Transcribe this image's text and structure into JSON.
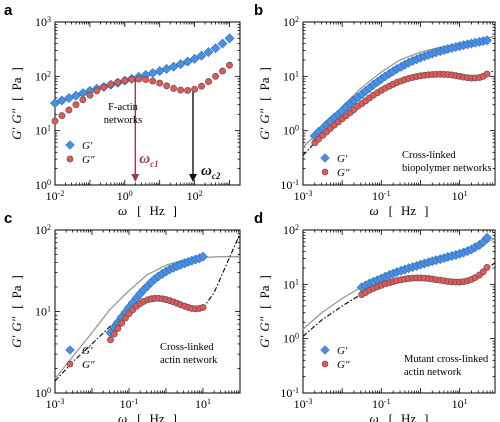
{
  "colors": {
    "gp": "#4a8fe0",
    "gpp": "#e85656",
    "marker_edge": "#555555",
    "fit": "#999999",
    "arrow_red": "#a3384a",
    "arrow_black": "#111111"
  },
  "chart_data": [
    {
      "panel": "a",
      "type": "scatter",
      "xscale": "log",
      "yscale": "log",
      "xlim": [
        0.01,
        2000
      ],
      "ylim": [
        1,
        1000
      ],
      "xticks": [
        {
          "v": 0.01,
          "b": "10",
          "e": "-2"
        },
        {
          "v": 1,
          "b": "10",
          "e": "0"
        },
        {
          "v": 100,
          "b": "10",
          "e": "2"
        }
      ],
      "yticks": [
        {
          "v": 1,
          "b": "10",
          "e": "0"
        },
        {
          "v": 10,
          "b": "10",
          "e": "1"
        },
        {
          "v": 100,
          "b": "10",
          "e": "2"
        },
        {
          "v": 1000,
          "b": "10",
          "e": "3"
        }
      ],
      "xlabel": {
        "sym": "ω",
        "unit": "Hz"
      },
      "ylabel": {
        "g1": "G′",
        "g2": "G″",
        "unit": "Pa"
      },
      "legend": [
        "G′",
        "G″"
      ],
      "annotation": [
        "F-actin",
        "networks"
      ],
      "markers": [
        {
          "label": "ω",
          "sub": "c1",
          "x": 2,
          "color": "arrow_red"
        },
        {
          "label": "ω",
          "sub": "c2",
          "x": 90,
          "color": "arrow_black"
        }
      ],
      "series": [
        {
          "name": "G′",
          "x": [
            0.01,
            0.0158,
            0.0251,
            0.0398,
            0.063,
            0.1,
            0.158,
            0.251,
            0.398,
            0.63,
            1,
            1.58,
            2.51,
            3.98,
            6.3,
            10,
            15.8,
            25.1,
            39.8,
            63,
            100,
            158,
            251,
            398,
            630,
            1000
          ],
          "y": [
            32,
            36,
            40,
            44,
            49,
            54,
            59,
            64,
            70,
            76,
            83,
            90,
            98,
            106,
            115,
            125,
            137,
            151,
            168,
            187,
            210,
            240,
            280,
            330,
            400,
            500
          ]
        },
        {
          "name": "G″",
          "x": [
            0.01,
            0.0158,
            0.0251,
            0.0398,
            0.063,
            0.1,
            0.158,
            0.251,
            0.398,
            0.63,
            1,
            1.58,
            2.51,
            3.98,
            6.3,
            10,
            15.8,
            25.1,
            39.8,
            63,
            100,
            158,
            251,
            398,
            630,
            1000
          ],
          "y": [
            15,
            19,
            24,
            30,
            37,
            45,
            54,
            63,
            71,
            78,
            84,
            88,
            89,
            87,
            82,
            75,
            67,
            60,
            56,
            55,
            58,
            66,
            80,
            100,
            125,
            160
          ]
        }
      ]
    },
    {
      "panel": "b",
      "type": "scatter",
      "xscale": "log",
      "yscale": "log",
      "xlim": [
        0.001,
        80
      ],
      "ylim": [
        0.1,
        100
      ],
      "xticks": [
        {
          "v": 0.001,
          "b": "10",
          "e": "-3"
        },
        {
          "v": 0.1,
          "b": "10",
          "e": "-1"
        },
        {
          "v": 10,
          "b": "10",
          "e": "1"
        }
      ],
      "yticks": [
        {
          "v": 0.1,
          "b": "10",
          "e": "-1"
        },
        {
          "v": 1,
          "b": "10",
          "e": "0"
        },
        {
          "v": 10,
          "b": "10",
          "e": "1"
        },
        {
          "v": 100,
          "b": "10",
          "e": "2"
        }
      ],
      "xlabel": {
        "sym": "ω",
        "unit": "Hz"
      },
      "ylabel": {
        "g1": "G′",
        "g2": "G″",
        "unit": "Pa"
      },
      "legend": [
        "G′",
        "G″"
      ],
      "annotation": [
        "Cross-linked",
        "biopolymer networks"
      ],
      "fit_gp": {
        "x": [
          0.001,
          0.002,
          0.005,
          0.01,
          0.03,
          0.1,
          0.3,
          1,
          3,
          10,
          30,
          80
        ],
        "y": [
          0.5,
          0.8,
          1.6,
          2.8,
          6,
          12,
          20,
          28,
          34,
          40,
          46,
          55
        ]
      },
      "fit_gpp": {
        "x": [
          0.001,
          0.002,
          0.005,
          0.01,
          0.03,
          0.1,
          0.3,
          1,
          3,
          6,
          10,
          15,
          20,
          30,
          50,
          80
        ],
        "y": [
          0.35,
          0.6,
          1.1,
          1.8,
          3.4,
          5.5,
          7.8,
          9.8,
          11,
          10.8,
          9.8,
          9,
          9,
          9.8,
          11,
          13
        ]
      },
      "series": [
        {
          "name": "G′",
          "x": [
            0.002,
            0.0025,
            0.0032,
            0.004,
            0.005,
            0.0063,
            0.008,
            0.01,
            0.0126,
            0.016,
            0.02,
            0.025,
            0.032,
            0.04,
            0.05,
            0.063,
            0.08,
            0.1,
            0.126,
            0.16,
            0.2,
            0.25,
            0.32,
            0.4,
            0.5,
            0.63,
            0.8,
            1,
            1.26,
            1.6,
            2,
            2.5,
            3.2,
            4,
            5,
            6.3,
            8,
            10,
            12.6,
            16,
            20,
            25,
            32,
            40,
            50
          ],
          "y": [
            0.8,
            0.95,
            1.1,
            1.3,
            1.5,
            1.75,
            2,
            2.3,
            2.7,
            3.1,
            3.6,
            4.1,
            4.7,
            5.4,
            6.1,
            7,
            7.9,
            8.9,
            10,
            11.2,
            12.4,
            13.7,
            15,
            16.4,
            17.8,
            19.2,
            20.6,
            22,
            23.4,
            24.8,
            26.2,
            27.6,
            29,
            30.4,
            31.8,
            33.2,
            34.6,
            36,
            37.4,
            38.8,
            40.2,
            41.6,
            43,
            44.5,
            46
          ]
        },
        {
          "name": "G″",
          "x": [
            0.002,
            0.0025,
            0.0032,
            0.004,
            0.005,
            0.0063,
            0.008,
            0.01,
            0.0126,
            0.016,
            0.02,
            0.025,
            0.032,
            0.04,
            0.05,
            0.063,
            0.08,
            0.1,
            0.126,
            0.16,
            0.2,
            0.25,
            0.32,
            0.4,
            0.5,
            0.63,
            0.8,
            1,
            1.26,
            1.6,
            2,
            2.5,
            3.2,
            4,
            5,
            6.3,
            8,
            10,
            12.6,
            16,
            20,
            25,
            32,
            40,
            50
          ],
          "y": [
            0.6,
            0.7,
            0.82,
            0.95,
            1.1,
            1.27,
            1.45,
            1.65,
            1.88,
            2.15,
            2.45,
            2.8,
            3.15,
            3.55,
            4,
            4.5,
            5,
            5.5,
            6.05,
            6.6,
            7.15,
            7.7,
            8.2,
            8.7,
            9.15,
            9.55,
            9.9,
            10.2,
            10.45,
            10.65,
            10.8,
            10.9,
            10.95,
            10.9,
            10.8,
            10.6,
            10.3,
            10,
            9.7,
            9.45,
            9.3,
            9.3,
            9.5,
            10,
            11
          ]
        }
      ]
    },
    {
      "panel": "c",
      "type": "scatter",
      "xscale": "log",
      "yscale": "log",
      "xlim": [
        0.001,
        100
      ],
      "ylim": [
        1,
        100
      ],
      "xticks": [
        {
          "v": 0.001,
          "b": "10",
          "e": "-3"
        },
        {
          "v": 0.1,
          "b": "10",
          "e": "-1"
        },
        {
          "v": 10,
          "b": "10",
          "e": "1"
        }
      ],
      "yticks": [
        {
          "v": 1,
          "b": "10",
          "e": "0"
        },
        {
          "v": 10,
          "b": "10",
          "e": "1"
        },
        {
          "v": 100,
          "b": "10",
          "e": "2"
        }
      ],
      "xlabel": {
        "sym": "ω",
        "unit": "Hz"
      },
      "ylabel": {
        "g1": "G′",
        "g2": "G″",
        "unit": "Pa"
      },
      "legend": [
        "G′",
        "G″"
      ],
      "annotation": [
        "Cross-linked",
        "actin network"
      ],
      "fit_gp": {
        "x": [
          0.001,
          0.003,
          0.01,
          0.03,
          0.1,
          0.3,
          1,
          3,
          10,
          30,
          100
        ],
        "y": [
          1.5,
          2.8,
          5.5,
          10.5,
          18,
          28,
          37,
          43,
          46,
          47,
          47
        ]
      },
      "fit_gpp": {
        "x": [
          0.001,
          0.003,
          0.01,
          0.03,
          0.1,
          0.3,
          1,
          3,
          6,
          10,
          20,
          40,
          100
        ],
        "y": [
          1.4,
          2.4,
          4,
          6.5,
          10,
          13,
          14,
          12.5,
          11,
          11,
          17,
          35,
          90
        ]
      },
      "series": [
        {
          "name": "G′",
          "x": [
            0.0316,
            0.04,
            0.05,
            0.063,
            0.08,
            0.1,
            0.126,
            0.16,
            0.2,
            0.25,
            0.32,
            0.4,
            0.5,
            0.63,
            0.8,
            1,
            1.26,
            1.6,
            2,
            2.5,
            3.2,
            4,
            5,
            6.3,
            8,
            10
          ],
          "y": [
            5.5,
            6.4,
            7.4,
            8.5,
            9.8,
            11.2,
            12.8,
            14.6,
            16.5,
            18.5,
            20.6,
            22.8,
            25,
            27,
            29,
            31,
            32.8,
            34.5,
            36,
            37.5,
            39,
            40.5,
            42,
            43.5,
            45,
            47
          ]
        },
        {
          "name": "G″",
          "x": [
            0.0316,
            0.04,
            0.05,
            0.063,
            0.08,
            0.1,
            0.126,
            0.16,
            0.2,
            0.25,
            0.32,
            0.4,
            0.5,
            0.63,
            0.8,
            1,
            1.26,
            1.6,
            2,
            2.5,
            3.2,
            4,
            5,
            6.3,
            8,
            10
          ],
          "y": [
            4.5,
            5.3,
            6.2,
            7.2,
            8.3,
            9.4,
            10.5,
            11.6,
            12.5,
            13.3,
            13.9,
            14.3,
            14.5,
            14.5,
            14.3,
            14,
            13.6,
            13.1,
            12.6,
            12.1,
            11.6,
            11.2,
            10.9,
            10.8,
            10.9,
            11.2
          ]
        }
      ]
    },
    {
      "panel": "d",
      "type": "scatter",
      "xscale": "log",
      "yscale": "log",
      "xlim": [
        0.001,
        80
      ],
      "ylim": [
        0.1,
        100
      ],
      "xticks": [
        {
          "v": 0.001,
          "b": "10",
          "e": "-3"
        },
        {
          "v": 0.1,
          "b": "10",
          "e": "-1"
        },
        {
          "v": 10,
          "b": "10",
          "e": "1"
        }
      ],
      "yticks": [
        {
          "v": 0.1,
          "b": "10",
          "e": "-1"
        },
        {
          "v": 1,
          "b": "10",
          "e": "0"
        },
        {
          "v": 10,
          "b": "10",
          "e": "1"
        },
        {
          "v": 100,
          "b": "10",
          "e": "2"
        }
      ],
      "xlabel": {
        "sym": "ω",
        "unit": "Hz"
      },
      "ylabel": {
        "g1": "G′",
        "g2": "G″",
        "unit": "Pa"
      },
      "legend": [
        "G′",
        "G″"
      ],
      "annotation": [
        "Mutant cross-linked",
        "actin network"
      ],
      "fit_gp": {
        "x": [
          0.001,
          0.003,
          0.01,
          0.03,
          0.1,
          0.3,
          1,
          3,
          10,
          30,
          80
        ],
        "y": [
          1.5,
          3,
          5.5,
          8.8,
          13,
          18,
          24,
          30,
          38,
          50,
          70
        ]
      },
      "fit_gpp": {
        "x": [
          0.001,
          0.003,
          0.01,
          0.03,
          0.1,
          0.3,
          1,
          3,
          5,
          10,
          20,
          40,
          80
        ],
        "y": [
          1.1,
          2.2,
          4,
          6.5,
          9.5,
          12,
          13,
          12.2,
          11.3,
          11,
          12.5,
          17,
          25
        ]
      },
      "series": [
        {
          "name": "G′",
          "x": [
            0.0316,
            0.04,
            0.05,
            0.063,
            0.08,
            0.1,
            0.126,
            0.16,
            0.2,
            0.25,
            0.32,
            0.4,
            0.5,
            0.63,
            0.8,
            1,
            1.26,
            1.6,
            2,
            2.5,
            3.2,
            4,
            5,
            6.3,
            8,
            10,
            12.6,
            16,
            20,
            25,
            32,
            40,
            50
          ],
          "y": [
            8.8,
            9.6,
            10.4,
            11.2,
            12,
            12.8,
            13.8,
            14.8,
            15.8,
            16.8,
            17.8,
            18.8,
            19.8,
            20.8,
            21.8,
            23,
            24.2,
            25.4,
            26.6,
            27.8,
            29,
            30.4,
            31.8,
            33.2,
            34.8,
            36.5,
            38.5,
            41,
            44,
            48,
            53,
            60,
            72
          ]
        },
        {
          "name": "G″",
          "x": [
            0.0316,
            0.04,
            0.05,
            0.063,
            0.08,
            0.1,
            0.126,
            0.16,
            0.2,
            0.25,
            0.32,
            0.4,
            0.5,
            0.63,
            0.8,
            1,
            1.26,
            1.6,
            2,
            2.5,
            3.2,
            4,
            5,
            6.3,
            8,
            10,
            12.6,
            16,
            20,
            25,
            32,
            40,
            50
          ],
          "y": [
            6.5,
            7.1,
            7.8,
            8.4,
            9,
            9.6,
            10.2,
            10.7,
            11.2,
            11.7,
            12.1,
            12.5,
            12.8,
            13,
            13.1,
            13.1,
            13,
            12.8,
            12.5,
            12.2,
            11.9,
            11.6,
            11.3,
            11.1,
            11,
            11,
            11.2,
            11.6,
            12.3,
            13.3,
            14.8,
            17,
            20.5
          ]
        }
      ]
    }
  ]
}
